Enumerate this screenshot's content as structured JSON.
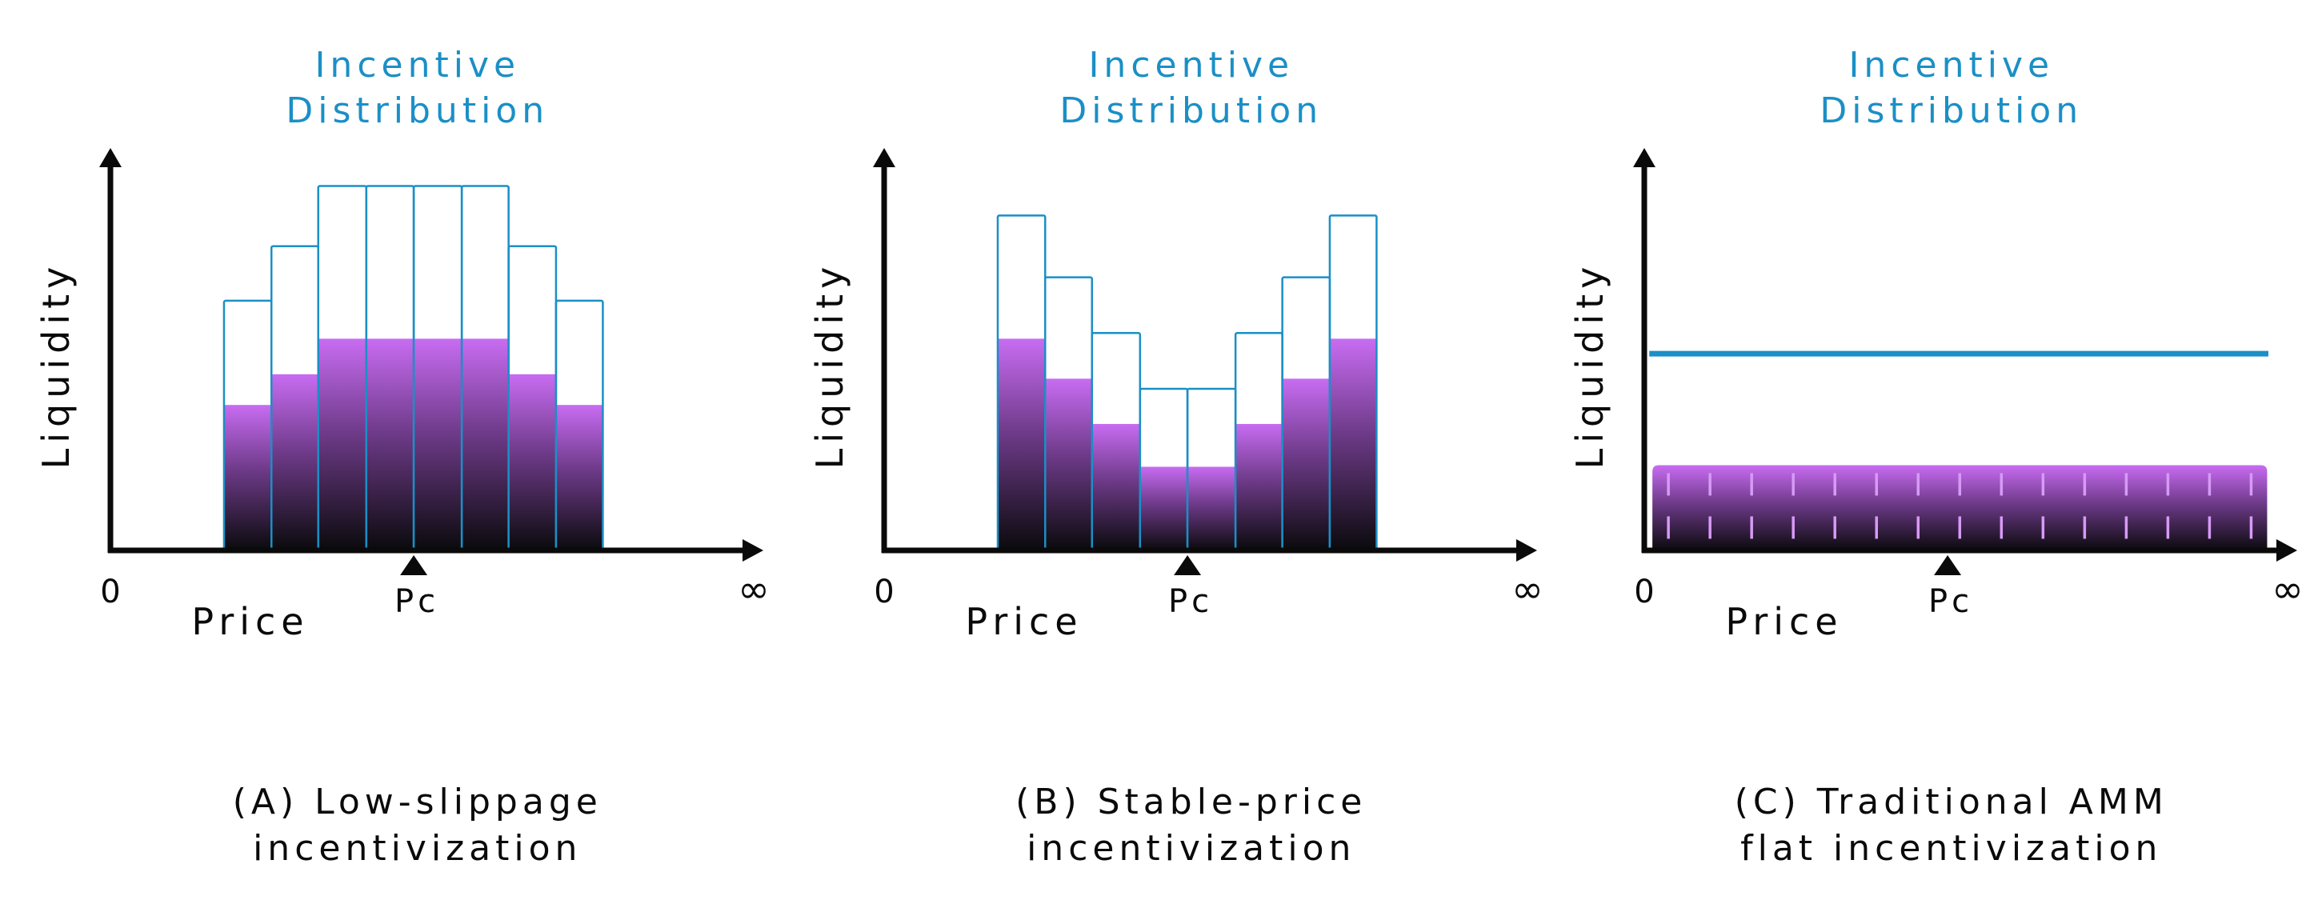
{
  "colors": {
    "accent_blue": "#1b8fc6",
    "axis": "#0a0a0a",
    "purple_top": "#c86cf2",
    "purple_bottom": "#0a0a0c",
    "tick_mark": "#d79af6",
    "background": "#ffffff"
  },
  "panels": [
    {
      "id": "a",
      "incentive_title": [
        "Incentive",
        "Distribution"
      ],
      "y_axis_label": "Liquidity",
      "x_axis_label": "Price",
      "origin_label": "0",
      "infinity_label": "∞",
      "pc_label": "Pc",
      "caption": [
        "(A) Low-slippage",
        "incentivization"
      ],
      "chart_data": {
        "type": "bar",
        "x_range": [
          0,
          1
        ],
        "y_range": [
          0,
          1
        ],
        "bars": [
          {
            "x0": 0.182,
            "x1": 0.258,
            "incentive": 0.618,
            "liquidity": 0.36
          },
          {
            "x0": 0.258,
            "x1": 0.333,
            "incentive": 0.753,
            "liquidity": 0.436
          },
          {
            "x0": 0.333,
            "x1": 0.41,
            "incentive": 0.902,
            "liquidity": 0.524
          },
          {
            "x0": 0.41,
            "x1": 0.486,
            "incentive": 0.902,
            "liquidity": 0.524
          },
          {
            "x0": 0.486,
            "x1": 0.563,
            "incentive": 0.902,
            "liquidity": 0.524
          },
          {
            "x0": 0.563,
            "x1": 0.638,
            "incentive": 0.902,
            "liquidity": 0.524
          },
          {
            "x0": 0.638,
            "x1": 0.714,
            "incentive": 0.753,
            "liquidity": 0.436
          },
          {
            "x0": 0.714,
            "x1": 0.789,
            "incentive": 0.618,
            "liquidity": 0.36
          }
        ],
        "pc": 0.486
      }
    },
    {
      "id": "b",
      "incentive_title": [
        "Incentive",
        "Distribution"
      ],
      "y_axis_label": "Liquidity",
      "x_axis_label": "Price",
      "origin_label": "0",
      "infinity_label": "∞",
      "pc_label": "Pc",
      "caption": [
        "(B) Stable-price",
        "incentivization"
      ],
      "chart_data": {
        "type": "bar",
        "x_range": [
          0,
          1
        ],
        "y_range": [
          0,
          1
        ],
        "bars": [
          {
            "x0": 0.182,
            "x1": 0.258,
            "incentive": 0.829,
            "liquidity": 0.524
          },
          {
            "x0": 0.258,
            "x1": 0.333,
            "incentive": 0.676,
            "liquidity": 0.425
          },
          {
            "x0": 0.333,
            "x1": 0.41,
            "incentive": 0.538,
            "liquidity": 0.313
          },
          {
            "x0": 0.41,
            "x1": 0.486,
            "incentive": 0.4,
            "liquidity": 0.207
          },
          {
            "x0": 0.486,
            "x1": 0.563,
            "incentive": 0.4,
            "liquidity": 0.207
          },
          {
            "x0": 0.563,
            "x1": 0.638,
            "incentive": 0.538,
            "liquidity": 0.313
          },
          {
            "x0": 0.638,
            "x1": 0.714,
            "incentive": 0.676,
            "liquidity": 0.425
          },
          {
            "x0": 0.714,
            "x1": 0.789,
            "incentive": 0.829,
            "liquidity": 0.524
          }
        ],
        "pc": 0.486
      }
    },
    {
      "id": "c",
      "incentive_title": [
        "Incentive",
        "Distribution"
      ],
      "y_axis_label": "Liquidity",
      "x_axis_label": "Price",
      "origin_label": "0",
      "infinity_label": "∞",
      "pc_label": "Pc",
      "caption": [
        "(C) Traditional AMM",
        "flat incentivization"
      ],
      "chart_data": {
        "type": "area",
        "x_range": [
          0,
          1
        ],
        "y_range": [
          0,
          1
        ],
        "incentive_level": 0.487,
        "liquidity_level": 0.211,
        "liquidity_x": [
          0.013,
          0.998
        ],
        "tick_count": 15,
        "pc": 0.486
      }
    }
  ]
}
